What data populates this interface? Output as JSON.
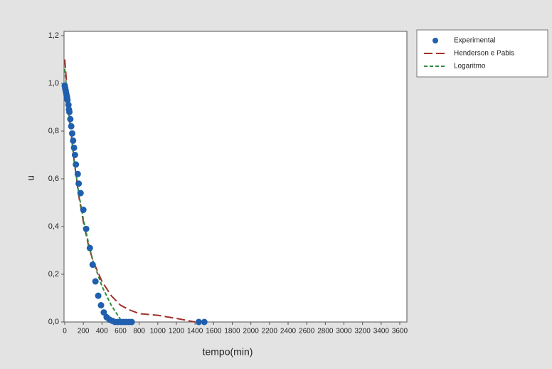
{
  "chart_data": {
    "type": "line",
    "xlabel": "tempo(min)",
    "ylabel": "u",
    "xlim": [
      0,
      3600
    ],
    "xticks": [
      0,
      200,
      400,
      600,
      800,
      1000,
      1200,
      1400,
      1600,
      1800,
      2000,
      2200,
      2400,
      2600,
      2800,
      3000,
      3200,
      3400,
      3600
    ],
    "ylim": [
      0,
      1.2
    ],
    "yticks": [
      {
        "value": 0,
        "label": "0,0"
      },
      {
        "value": 0.2,
        "label": "0,2"
      },
      {
        "value": 0.4,
        "label": "0,4"
      },
      {
        "value": 0.6,
        "label": "0,6"
      },
      {
        "value": 0.8,
        "label": "0,8"
      },
      {
        "value": 1.0,
        "label": "1,0"
      },
      {
        "value": 1.2,
        "label": "1,2"
      }
    ],
    "legend": "outside-top-right",
    "series": [
      {
        "name": "Experimental",
        "color": "#1f5fae",
        "style": "markers",
        "x": [
          0,
          5,
          10,
          15,
          20,
          25,
          30,
          40,
          45,
          50,
          60,
          70,
          80,
          90,
          100,
          110,
          120,
          140,
          150,
          170,
          200,
          230,
          270,
          300,
          330,
          360,
          390,
          420,
          450,
          480,
          510,
          540,
          570,
          600,
          630,
          660,
          690,
          720,
          1440,
          1500
        ],
        "values": [
          0.99,
          0.98,
          0.97,
          0.96,
          0.95,
          0.94,
          0.93,
          0.91,
          0.89,
          0.88,
          0.85,
          0.82,
          0.79,
          0.76,
          0.73,
          0.7,
          0.66,
          0.62,
          0.58,
          0.54,
          0.47,
          0.39,
          0.31,
          0.24,
          0.17,
          0.11,
          0.07,
          0.04,
          0.02,
          0.01,
          0.005,
          0,
          0,
          0,
          0,
          0,
          0,
          0,
          0,
          0
        ]
      },
      {
        "name": "Henderson e Pabis",
        "color": "#a0302a",
        "style": "long-dash",
        "x": [
          0,
          50,
          100,
          150,
          200,
          250,
          300,
          400,
          500,
          600,
          700,
          800,
          1000,
          1200,
          1400
        ],
        "values": [
          1.1,
          0.86,
          0.68,
          0.53,
          0.42,
          0.33,
          0.26,
          0.17,
          0.11,
          0.07,
          0.05,
          0.035,
          0.028,
          0.015,
          0.0
        ]
      },
      {
        "name": "Logaritmo",
        "color": "#2e8b3a",
        "style": "short-dash",
        "x": [
          0,
          50,
          100,
          150,
          200,
          250,
          300,
          400,
          500,
          600,
          620
        ],
        "values": [
          1.06,
          0.85,
          0.68,
          0.54,
          0.43,
          0.34,
          0.26,
          0.15,
          0.07,
          0.01,
          0.0
        ]
      }
    ]
  }
}
